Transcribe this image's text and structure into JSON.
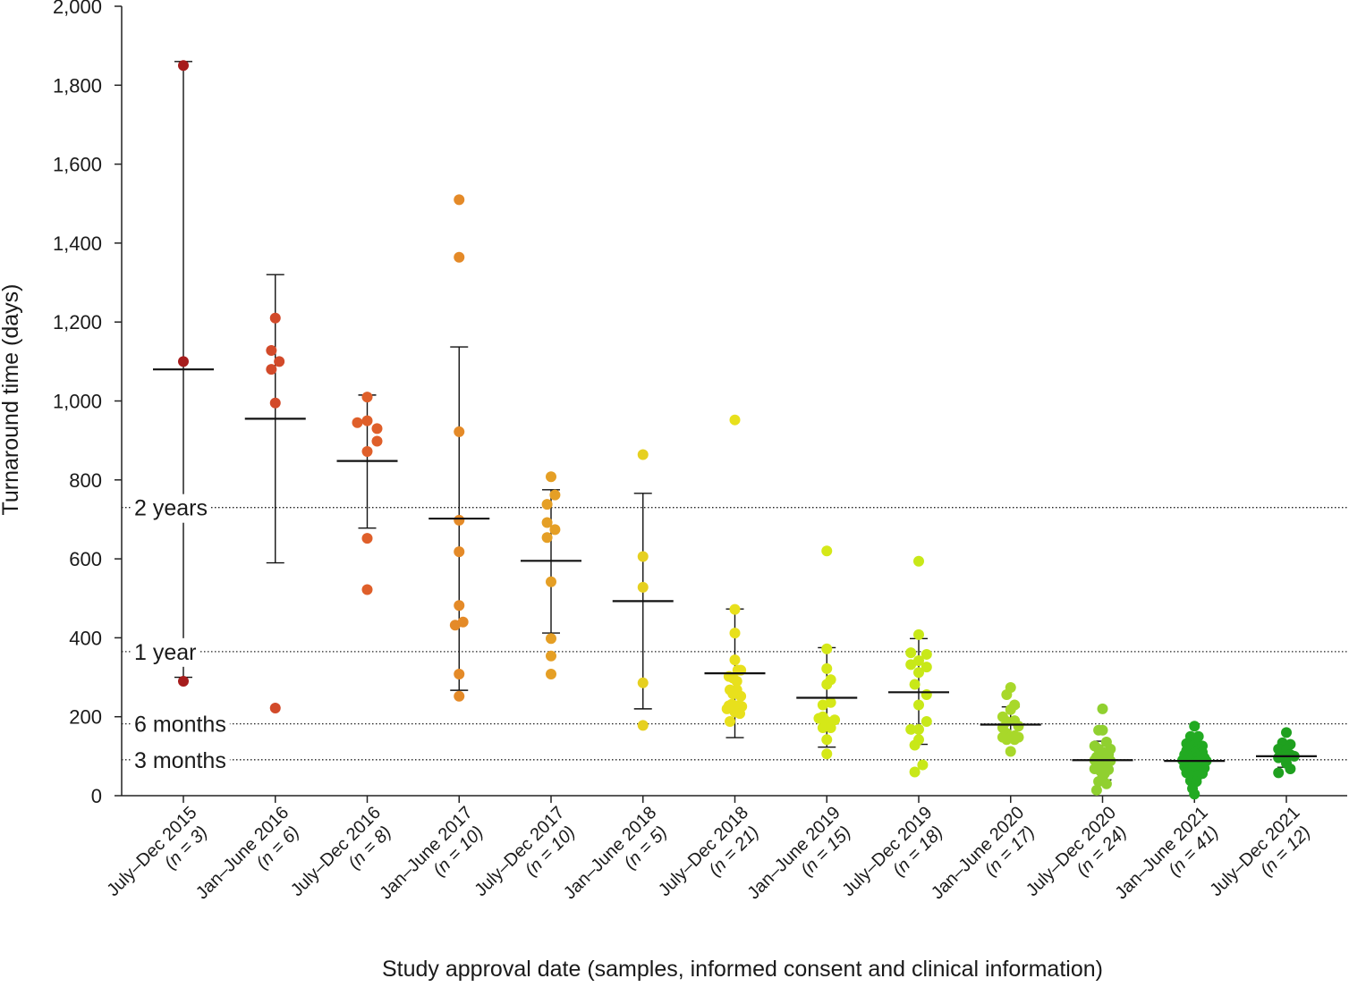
{
  "chart_data": {
    "type": "scatter",
    "subtype": "dot-plot-with-mean-and-error-bars",
    "title": "",
    "xlabel": "Study approval date (samples, informed consent and clinical information)",
    "ylabel": "Turnaround time (days)",
    "ylim": [
      0,
      2000
    ],
    "yticks": [
      0,
      200,
      400,
      600,
      800,
      1000,
      1200,
      1400,
      1600,
      1800,
      2000
    ],
    "ytick_labels": [
      "0",
      "200",
      "400",
      "600",
      "800",
      "1,000",
      "1,200",
      "1,400",
      "1,600",
      "1,800",
      "2,000"
    ],
    "reference_lines": [
      {
        "label": "2 years",
        "value": 730
      },
      {
        "label": "1 year",
        "value": 365
      },
      {
        "label": "6 months",
        "value": 182
      },
      {
        "label": "3 months",
        "value": 91
      }
    ],
    "categories": [
      {
        "period": "July–Dec 2015",
        "n_label": "(n = 3)",
        "color": "#a61c1c",
        "mean": 1080,
        "err": [
          300,
          1860
        ],
        "points": [
          [
            0,
            1850
          ],
          [
            0,
            1100
          ],
          [
            0,
            290
          ]
        ]
      },
      {
        "period": "Jan–June 2016",
        "n_label": "(n = 6)",
        "color": "#d24a2a",
        "mean": 955,
        "err": [
          590,
          1320
        ],
        "points": [
          [
            0,
            1210
          ],
          [
            -0.4,
            1128
          ],
          [
            0.4,
            1100
          ],
          [
            -0.4,
            1080
          ],
          [
            0,
            995
          ],
          [
            0,
            222
          ]
        ]
      },
      {
        "period": "July–Dec 2016",
        "n_label": "(n = 8)",
        "color": "#df5f2a",
        "mean": 848,
        "err": [
          678,
          1015
        ],
        "points": [
          [
            0,
            1010
          ],
          [
            -1,
            945
          ],
          [
            0,
            950
          ],
          [
            1,
            930
          ],
          [
            1,
            898
          ],
          [
            0,
            872
          ],
          [
            0,
            652
          ],
          [
            0,
            522
          ]
        ]
      },
      {
        "period": "Jan–June 2017",
        "n_label": "(n = 10)",
        "color": "#e48a28",
        "mean": 702,
        "err": [
          267,
          1137
        ],
        "points": [
          [
            0,
            1510
          ],
          [
            0,
            1364
          ],
          [
            0,
            922
          ],
          [
            0,
            698
          ],
          [
            0,
            618
          ],
          [
            0,
            482
          ],
          [
            -0.4,
            432
          ],
          [
            0.4,
            440
          ],
          [
            0,
            308
          ],
          [
            0,
            252
          ]
        ]
      },
      {
        "period": "July–Dec 2017",
        "n_label": "(n = 10)",
        "color": "#e59f25",
        "mean": 595,
        "err": [
          412,
          775
        ],
        "points": [
          [
            0,
            808
          ],
          [
            -0.4,
            738
          ],
          [
            0.4,
            762
          ],
          [
            -0.4,
            692
          ],
          [
            0.4,
            674
          ],
          [
            -0.4,
            654
          ],
          [
            0,
            542
          ],
          [
            0,
            398
          ],
          [
            0,
            354
          ],
          [
            0,
            308
          ]
        ]
      },
      {
        "period": "Jan–June 2018",
        "n_label": "(n = 5)",
        "color": "#e6d020",
        "mean": 493,
        "err": [
          220,
          766
        ],
        "points": [
          [
            0,
            864
          ],
          [
            0,
            606
          ],
          [
            0,
            528
          ],
          [
            0,
            286
          ],
          [
            0,
            178
          ]
        ]
      },
      {
        "period": "July–Dec 2018",
        "n_label": "(n = 21)",
        "color": "#e8e01c",
        "mean": 310,
        "err": [
          147,
          473
        ],
        "points": [
          [
            0,
            952
          ],
          [
            0,
            472
          ],
          [
            0,
            412
          ],
          [
            0,
            344
          ],
          [
            -0.6,
            302
          ],
          [
            -0.2,
            298
          ],
          [
            0.6,
            318
          ],
          [
            0.3,
            318
          ],
          [
            0.2,
            290
          ],
          [
            -0.5,
            268
          ],
          [
            0.2,
            268
          ],
          [
            -0.2,
            258
          ],
          [
            0.6,
            252
          ],
          [
            -0.3,
            232
          ],
          [
            -0.6,
            228
          ],
          [
            0.3,
            228
          ],
          [
            0.7,
            226
          ],
          [
            -0.8,
            220
          ],
          [
            0,
            212
          ],
          [
            0.5,
            208
          ],
          [
            -0.5,
            188
          ]
        ]
      },
      {
        "period": "Jan–June 2019",
        "n_label": "(n = 15)",
        "color": "#d5e818",
        "mean": 248,
        "err": [
          123,
          375
        ],
        "points": [
          [
            0,
            620
          ],
          [
            0,
            372
          ],
          [
            0,
            322
          ],
          [
            0,
            282
          ],
          [
            0.4,
            294
          ],
          [
            -0.4,
            230
          ],
          [
            0.4,
            236
          ],
          [
            -0.8,
            196
          ],
          [
            -0.4,
            200
          ],
          [
            0.8,
            192
          ],
          [
            0,
            188
          ],
          [
            -0.4,
            172
          ],
          [
            0.4,
            172
          ],
          [
            0,
            142
          ],
          [
            0,
            106
          ]
        ]
      },
      {
        "period": "July–Dec 2019",
        "n_label": "(n = 18)",
        "color": "#c8e818",
        "mean": 262,
        "err": [
          130,
          398
        ],
        "points": [
          [
            0,
            594
          ],
          [
            0,
            408
          ],
          [
            -0.8,
            362
          ],
          [
            0.8,
            358
          ],
          [
            -0.8,
            332
          ],
          [
            0,
            342
          ],
          [
            0.8,
            326
          ],
          [
            0,
            312
          ],
          [
            -0.4,
            282
          ],
          [
            0.8,
            256
          ],
          [
            0,
            230
          ],
          [
            0.8,
            188
          ],
          [
            0,
            168
          ],
          [
            -0.8,
            168
          ],
          [
            0,
            142
          ],
          [
            -0.4,
            128
          ],
          [
            0.4,
            78
          ],
          [
            -0.4,
            60
          ]
        ]
      },
      {
        "period": "Jan–June 2020",
        "n_label": "(n = 17)",
        "color": "#a8d82a",
        "mean": 180,
        "err": [
          137,
          225
        ],
        "points": [
          [
            0,
            274
          ],
          [
            -0.4,
            256
          ],
          [
            0.4,
            230
          ],
          [
            0,
            218
          ],
          [
            -0.8,
            200
          ],
          [
            -0.4,
            188
          ],
          [
            0.4,
            190
          ],
          [
            0.8,
            176
          ],
          [
            -0.8,
            172
          ],
          [
            -0.4,
            158
          ],
          [
            0,
            148
          ],
          [
            0.4,
            152
          ],
          [
            0.8,
            148
          ],
          [
            -0.8,
            148
          ],
          [
            -0.4,
            142
          ],
          [
            0.4,
            142
          ],
          [
            0,
            112
          ]
        ]
      },
      {
        "period": "July–Dec 2020",
        "n_label": "(n = 24)",
        "color": "#90d030",
        "mean": 90,
        "err": [
          40,
          138
        ],
        "points": [
          [
            0,
            220
          ],
          [
            0,
            166
          ],
          [
            -0.4,
            166
          ],
          [
            0.4,
            136
          ],
          [
            -0.8,
            126
          ],
          [
            -0.4,
            118
          ],
          [
            0.8,
            118
          ],
          [
            0,
            110
          ],
          [
            0.6,
            104
          ],
          [
            -0.6,
            98
          ],
          [
            -0.2,
            95
          ],
          [
            0.2,
            92
          ],
          [
            -0.8,
            90
          ],
          [
            0.8,
            88
          ],
          [
            -0.4,
            80
          ],
          [
            0.4,
            76
          ],
          [
            -0.8,
            68
          ],
          [
            0.6,
            66
          ],
          [
            -0.2,
            62
          ],
          [
            0.2,
            56
          ],
          [
            0,
            46
          ],
          [
            -0.4,
            36
          ],
          [
            0.4,
            30
          ],
          [
            -0.6,
            14
          ]
        ]
      },
      {
        "period": "Jan–June 2021",
        "n_label": "(n = 41)",
        "color": "#22aa22",
        "mean": 88,
        "err": [
          50,
          128
        ],
        "points": [
          [
            0,
            176
          ],
          [
            -0.4,
            150
          ],
          [
            0.4,
            150
          ],
          [
            -0.8,
            132
          ],
          [
            -0.4,
            126
          ],
          [
            0,
            128
          ],
          [
            0.4,
            124
          ],
          [
            0.8,
            126
          ],
          [
            -0.8,
            114
          ],
          [
            -0.4,
            116
          ],
          [
            0.4,
            114
          ],
          [
            0.8,
            110
          ],
          [
            0,
            108
          ],
          [
            -1,
            104
          ],
          [
            -0.6,
            100
          ],
          [
            -0.2,
            98
          ],
          [
            0.2,
            96
          ],
          [
            0.6,
            98
          ],
          [
            1,
            96
          ],
          [
            -1.2,
            90
          ],
          [
            -0.8,
            88
          ],
          [
            -0.4,
            86
          ],
          [
            0,
            84
          ],
          [
            0.4,
            86
          ],
          [
            0.8,
            84
          ],
          [
            1.2,
            88
          ],
          [
            -1,
            74
          ],
          [
            -0.6,
            72
          ],
          [
            -0.2,
            70
          ],
          [
            0.2,
            68
          ],
          [
            0.6,
            72
          ],
          [
            1,
            70
          ],
          [
            -0.8,
            58
          ],
          [
            -0.4,
            56
          ],
          [
            0,
            54
          ],
          [
            0.4,
            52
          ],
          [
            0.8,
            56
          ],
          [
            -0.4,
            38
          ],
          [
            0.2,
            36
          ],
          [
            -0.2,
            18
          ],
          [
            0,
            4
          ]
        ]
      },
      {
        "period": "July–Dec 2021",
        "n_label": "(n = 12)",
        "color": "#1fa01f",
        "mean": 100,
        "err": [
          72,
          128
        ],
        "points": [
          [
            0,
            160
          ],
          [
            -0.4,
            134
          ],
          [
            0.4,
            130
          ],
          [
            -0.8,
            118
          ],
          [
            0,
            116
          ],
          [
            0.4,
            104
          ],
          [
            -0.4,
            98
          ],
          [
            0.8,
            100
          ],
          [
            -0.8,
            96
          ],
          [
            0,
            82
          ],
          [
            0.4,
            68
          ],
          [
            -0.8,
            58
          ]
        ]
      }
    ]
  }
}
